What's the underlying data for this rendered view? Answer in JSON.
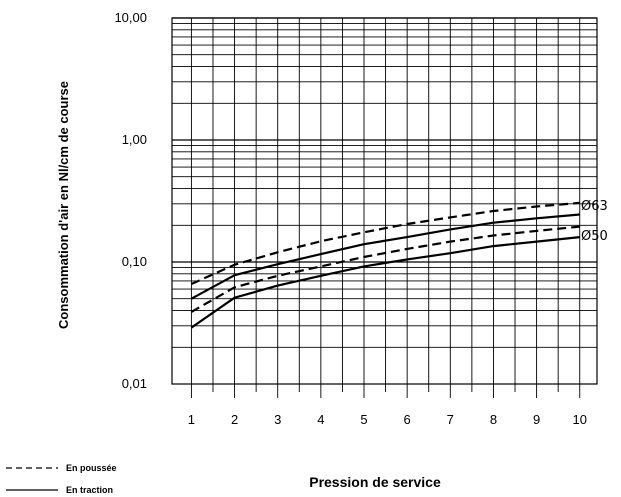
{
  "chart_data": {
    "type": "line",
    "title": "",
    "xlabel": "Pression de service",
    "ylabel": "Consommation d'air en Nl/cm de course",
    "yscale": "log",
    "xlim": [
      0.55,
      10.4
    ],
    "ylim": [
      0.01,
      10
    ],
    "x_ticks": [
      1,
      2,
      3,
      4,
      5,
      6,
      7,
      8,
      9,
      10
    ],
    "y_ticks": [
      0.01,
      0.1,
      1,
      10
    ],
    "y_tick_labels": [
      "0,01",
      "0,10",
      "1,00",
      "10,00"
    ],
    "grid": true,
    "x": [
      1,
      2,
      3,
      4,
      5,
      6,
      7,
      8,
      9,
      10
    ],
    "series": [
      {
        "curve": "Ø63",
        "style": "dashed",
        "values": [
          0.066,
          0.095,
          0.12,
          0.148,
          0.175,
          0.205,
          0.232,
          0.262,
          0.285,
          0.305
        ]
      },
      {
        "curve": "Ø63",
        "style": "solid",
        "values": [
          0.05,
          0.078,
          0.096,
          0.116,
          0.14,
          0.16,
          0.185,
          0.21,
          0.228,
          0.245
        ]
      },
      {
        "curve": "Ø50",
        "style": "dashed",
        "values": [
          0.039,
          0.062,
          0.077,
          0.092,
          0.11,
          0.128,
          0.147,
          0.165,
          0.18,
          0.195
        ]
      },
      {
        "curve": "Ø50",
        "style": "solid",
        "values": [
          0.029,
          0.051,
          0.064,
          0.077,
          0.092,
          0.105,
          0.118,
          0.135,
          0.147,
          0.16
        ]
      }
    ],
    "curve_labels": [
      "Ø63",
      "Ø50"
    ],
    "legend": {
      "placement": "bottom-left",
      "items": [
        {
          "label": "En poussée",
          "style": "dashed"
        },
        {
          "label": "En traction",
          "style": "solid"
        }
      ]
    }
  }
}
